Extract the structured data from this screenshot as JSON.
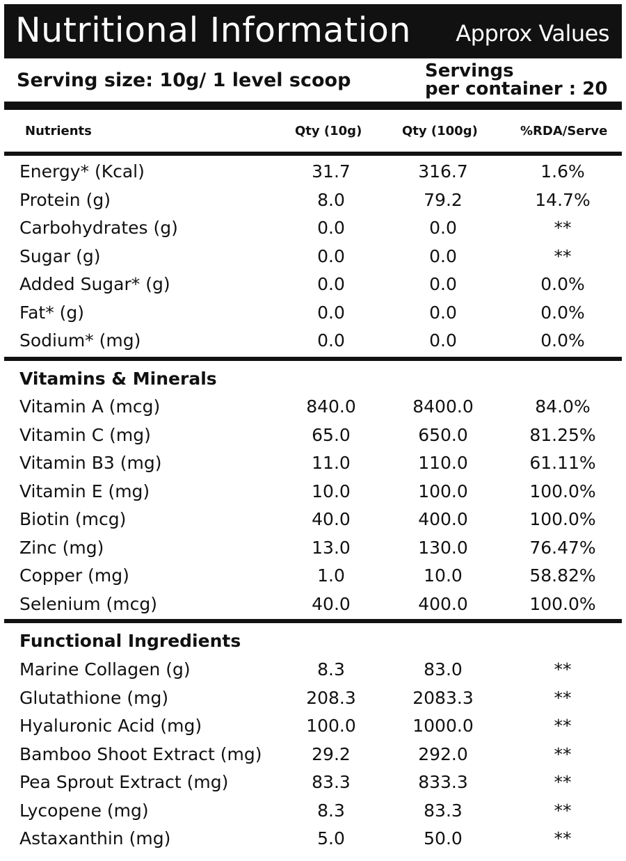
{
  "header": {
    "title": "Nutritional Information",
    "subtitle": "Approx Values",
    "serving_size": "Serving size: 10g/ 1 level scoop",
    "servings_line1": "Servings",
    "servings_line2": "per container : 20"
  },
  "columns": {
    "name": "Nutrients",
    "qty10": "Qty (10g)",
    "qty100": "Qty (100g)",
    "rda": "%RDA/Serve"
  },
  "nutrients": [
    {
      "name": "Energy* (Kcal)",
      "qty10": "31.7",
      "qty100": "316.7",
      "rda": "1.6%"
    },
    {
      "name": "Protein (g)",
      "qty10": "8.0",
      "qty100": "79.2",
      "rda": "14.7%"
    },
    {
      "name": "Carbohydrates (g)",
      "qty10": "0.0",
      "qty100": "0.0",
      "rda": "**"
    },
    {
      "name": "Sugar (g)",
      "qty10": "0.0",
      "qty100": "0.0",
      "rda": "**"
    },
    {
      "name": "Added Sugar* (g)",
      "qty10": "0.0",
      "qty100": "0.0",
      "rda": "0.0%"
    },
    {
      "name": "Fat* (g)",
      "qty10": "0.0",
      "qty100": "0.0",
      "rda": "0.0%"
    },
    {
      "name": "Sodium* (mg)",
      "qty10": "0.0",
      "qty100": "0.0",
      "rda": "0.0%"
    }
  ],
  "vitamins": {
    "title": "Vitamins & Minerals",
    "rows": [
      {
        "name": "Vitamin A (mcg)",
        "qty10": "840.0",
        "qty100": "8400.0",
        "rda": "84.0%"
      },
      {
        "name": "Vitamin C (mg)",
        "qty10": "65.0",
        "qty100": "650.0",
        "rda": "81.25%"
      },
      {
        "name": "Vitamin B3 (mg)",
        "qty10": "11.0",
        "qty100": "110.0",
        "rda": "61.11%"
      },
      {
        "name": "Vitamin E (mg)",
        "qty10": "10.0",
        "qty100": "100.0",
        "rda": "100.0%"
      },
      {
        "name": "Biotin (mcg)",
        "qty10": "40.0",
        "qty100": "400.0",
        "rda": "100.0%"
      },
      {
        "name": "Zinc (mg)",
        "qty10": "13.0",
        "qty100": "130.0",
        "rda": "76.47%"
      },
      {
        "name": "Copper (mg)",
        "qty10": "1.0",
        "qty100": "10.0",
        "rda": "58.82%"
      },
      {
        "name": "Selenium (mcg)",
        "qty10": "40.0",
        "qty100": "400.0",
        "rda": "100.0%"
      }
    ]
  },
  "functional": {
    "title": "Functional Ingredients",
    "rows": [
      {
        "name": "Marine Collagen (g)",
        "qty10": "8.3",
        "qty100": "83.0",
        "rda": "**"
      },
      {
        "name": "Glutathione (mg)",
        "qty10": "208.3",
        "qty100": "2083.3",
        "rda": "**"
      },
      {
        "name": "Hyaluronic Acid (mg)",
        "qty10": "100.0",
        "qty100": "1000.0",
        "rda": "**"
      },
      {
        "name": "Bamboo Shoot Extract (mg)",
        "qty10": "29.2",
        "qty100": "292.0",
        "rda": "**"
      },
      {
        "name": "Pea Sprout Extract (mg)",
        "qty10": "83.3",
        "qty100": "833.3",
        "rda": "**"
      },
      {
        "name": "Lycopene (mg)",
        "qty10": "8.3",
        "qty100": "83.3",
        "rda": "**"
      },
      {
        "name": "Astaxanthin (mg)",
        "qty10": "5.0",
        "qty100": "50.0",
        "rda": "**"
      }
    ]
  }
}
